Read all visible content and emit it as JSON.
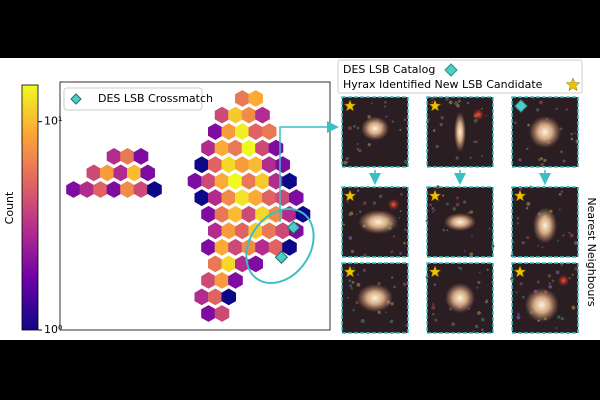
{
  "chart_data": {
    "type": "hexbin",
    "xlim": [
      0,
      20
    ],
    "ylim": [
      0,
      15
    ],
    "hexbin": {
      "x": [
        4,
        5,
        6,
        2.5,
        3.5,
        4.5,
        5.5,
        6.5,
        1,
        2,
        3,
        4,
        5,
        6,
        7,
        13.5,
        14.5,
        12,
        13,
        14,
        15,
        11.5,
        12.5,
        13.5,
        14.5,
        15.5,
        11,
        12,
        13,
        14,
        15,
        16,
        10.5,
        11.5,
        12.5,
        13.5,
        14.5,
        15.5,
        16.5,
        10,
        11,
        12,
        13,
        14,
        15,
        16,
        17,
        10.5,
        11.5,
        12.5,
        13.5,
        14.5,
        15.5,
        16.5,
        17.5,
        11,
        12,
        13,
        14,
        15,
        16,
        17,
        18,
        11.5,
        12.5,
        13.5,
        14.5,
        15.5,
        16.5,
        17.5,
        11,
        12,
        13,
        14,
        15,
        16,
        17,
        11.5,
        12.5,
        13.5,
        14.5,
        11,
        12,
        13,
        10.5,
        11.5,
        12.5,
        11,
        12
      ],
      "y": [
        10.5,
        10.5,
        10.5,
        9.5,
        9.5,
        9.5,
        9.5,
        9.5,
        8.5,
        8.5,
        8.5,
        8.5,
        8.5,
        8.5,
        8.5,
        14,
        14,
        13,
        13,
        13,
        13,
        12,
        12,
        12,
        12,
        12,
        11,
        11,
        11,
        11,
        11,
        11,
        10,
        10,
        10,
        10,
        10,
        10,
        10,
        9,
        9,
        9,
        9,
        9,
        9,
        9,
        9,
        8,
        8,
        8,
        8,
        8,
        8,
        8,
        8,
        7,
        7,
        7,
        7,
        7,
        7,
        7,
        7,
        6,
        6,
        6,
        6,
        6,
        6,
        6,
        5,
        5,
        5,
        5,
        5,
        5,
        5,
        4,
        4,
        4,
        4,
        3,
        3,
        3,
        2,
        2,
        2,
        1,
        1
      ],
      "values": [
        3,
        6,
        2,
        4,
        8,
        3,
        10,
        2,
        2,
        3,
        5,
        2,
        7,
        4,
        1,
        6,
        9,
        4,
        11,
        7,
        3,
        2,
        8,
        14,
        5,
        6,
        3,
        9,
        6,
        15,
        4,
        2,
        1,
        5,
        12,
        8,
        10,
        3,
        2,
        2,
        4,
        9,
        15,
        6,
        11,
        3,
        1,
        1,
        3,
        7,
        13,
        9,
        5,
        4,
        2,
        2,
        6,
        10,
        4,
        12,
        7,
        3,
        1,
        3,
        8,
        5,
        11,
        6,
        4,
        2,
        2,
        9,
        4,
        7,
        3,
        5,
        1,
        6,
        12,
        3,
        2,
        4,
        8,
        2,
        3,
        5,
        1,
        2,
        4
      ]
    },
    "series": [
      {
        "name": "DES LSB Crossmatch",
        "color": "#4ecdc4",
        "marker": "diamond",
        "x": [
          17.3,
          16.4
        ],
        "y": [
          6.2,
          4.4
        ]
      }
    ],
    "legend": "upper left",
    "colorbar": {
      "label": "Count",
      "lim": [
        1,
        15
      ],
      "log": true,
      "ticks": [
        {
          "value": 1,
          "label": "10⁰"
        },
        {
          "value": 10,
          "label": "10¹"
        }
      ],
      "colormap": [
        "#0d0887",
        "#6a00a8",
        "#b12a90",
        "#e16462",
        "#fca636",
        "#f0f921"
      ]
    }
  },
  "panel": {
    "legend": [
      "DES LSB Catalog",
      "Hyrax Identified New LSB Candidate"
    ],
    "side_label": "Nearest Neighbours"
  }
}
